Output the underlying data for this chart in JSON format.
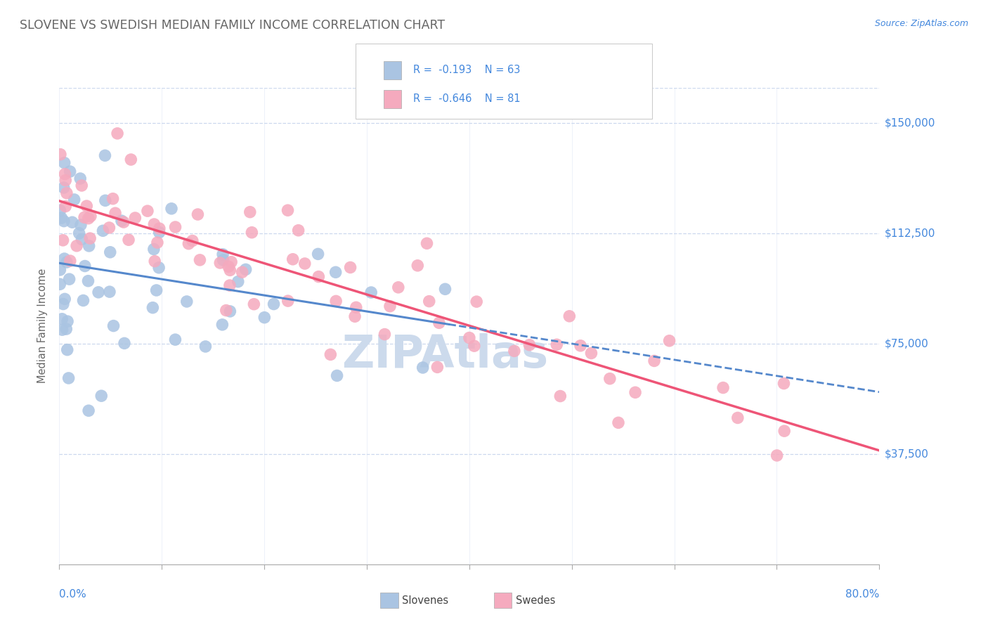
{
  "title": "SLOVENE VS SWEDISH MEDIAN FAMILY INCOME CORRELATION CHART",
  "source": "Source: ZipAtlas.com",
  "ylabel": "Median Family Income",
  "ytick_labels": [
    "$37,500",
    "$75,000",
    "$112,500",
    "$150,000"
  ],
  "ytick_values": [
    37500,
    75000,
    112500,
    150000
  ],
  "ymin": 0,
  "ymax": 162000,
  "xmin": 0.0,
  "xmax": 0.8,
  "slovene_color": "#aac4e2",
  "swede_color": "#f5aabe",
  "slovene_line_color": "#5588cc",
  "swede_line_color": "#ee5577",
  "watermark_color": "#ccdaec",
  "legend_text_color": "#4488dd",
  "title_color": "#666666",
  "axis_label_color": "#4488dd",
  "background_color": "#ffffff",
  "grid_color": "#ccd8ee",
  "slovene_intercept": 105000,
  "slovene_slope": -55000,
  "swede_intercept": 122000,
  "swede_slope": -105000
}
